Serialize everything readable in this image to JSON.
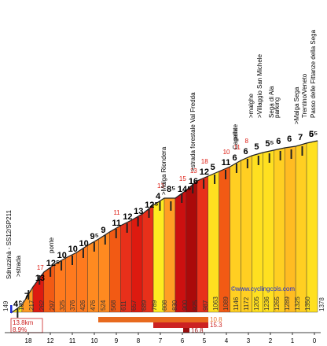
{
  "chart_data": {
    "type": "area",
    "title": "",
    "xlabel": "",
    "ylabel": "",
    "credit": "©www.cyclingcols.com",
    "x_unit": "km to go",
    "x_ticks": [
      18,
      12,
      11,
      10,
      9,
      8,
      7,
      6,
      5,
      4,
      3,
      2,
      1,
      0
    ],
    "xlim": [
      18.6,
      0
    ],
    "ylim": [
      1490,
      1380
    ],
    "start_altitude": "149",
    "end_altitude": "1378",
    "stats": {
      "distance": "13.8km",
      "gradient": "8.9%"
    },
    "max_gradient_bars": [
      {
        "label": "10.8",
        "color": "#e86a1e"
      },
      {
        "label": "15.3",
        "color": "#cc2222"
      },
      {
        "label": "16.8",
        "color": "#990f0f"
      }
    ],
    "segments": [
      {
        "km": 13.3,
        "grade": "4",
        "color": "#ffeb20"
      },
      {
        "km": 13.0,
        "grade": "7",
        "color": "#ff9a24"
      },
      {
        "km": 12.5,
        "grade": "13",
        "color": "#dd1a10"
      },
      {
        "km": 12.0,
        "grade": "12",
        "color": "#f25a14"
      },
      {
        "km": 11.5,
        "grade": "10",
        "color": "#ff7a1e"
      },
      {
        "km": 11.0,
        "grade": "10",
        "color": "#ff7a1e"
      },
      {
        "km": 10.5,
        "grade": "10",
        "color": "#ff7a1e"
      },
      {
        "km": 10.0,
        "grade": "9",
        "color": "#ff8a20"
      },
      {
        "km": 9.5,
        "grade": "9",
        "color": "#ff8a20"
      },
      {
        "km": 9.0,
        "grade": "11",
        "color": "#f25a14"
      },
      {
        "km": 8.5,
        "grade": "12",
        "color": "#e8301a"
      },
      {
        "km": 8.0,
        "grade": "13",
        "color": "#dd1a10"
      },
      {
        "km": 7.5,
        "grade": "12",
        "color": "#e8301a"
      },
      {
        "km": 7.0,
        "grade": "4",
        "color": "#ffeb20"
      },
      {
        "km": 6.5,
        "grade": "8",
        "color": "#ff9e24"
      },
      {
        "km": 6.0,
        "grade": "14",
        "color": "#cc1010"
      },
      {
        "km": 5.5,
        "grade": "16",
        "color": "#aa0a0a"
      },
      {
        "km": 5.0,
        "grade": "12",
        "color": "#e8301a"
      },
      {
        "km": 4.5,
        "grade": "5",
        "color": "#ffe020"
      },
      {
        "km": 4.0,
        "grade": "11",
        "color": "#f25a14"
      },
      {
        "km": 3.5,
        "grade": "6",
        "color": "#ffcf22"
      },
      {
        "km": 3.0,
        "grade": "6",
        "color": "#ffcf22"
      },
      {
        "km": 2.5,
        "grade": "5",
        "color": "#ffe020"
      },
      {
        "km": 2.0,
        "grade": "5",
        "color": "#ffe020"
      },
      {
        "km": 1.5,
        "grade": "6",
        "color": "#ffcf22"
      },
      {
        "km": 1.0,
        "grade": "7",
        "color": "#ffbc22"
      },
      {
        "km": 0.5,
        "grade": "6",
        "color": "#ffcf22"
      },
      {
        "km": 0.0,
        "grade": "5",
        "color": "#ffe020"
      }
    ],
    "altitudes": [
      "149",
      "162",
      "217",
      "262",
      "297",
      "325",
      "376",
      "426",
      "476",
      "524",
      "568",
      "611",
      "657",
      "689",
      "789",
      "808",
      "830",
      "900",
      "925",
      "987",
      "1063",
      "1089",
      "1146",
      "1172",
      "1205",
      "1236",
      "1265",
      "1289",
      "1325",
      "1350",
      "1378"
    ],
    "grade_labels": [
      {
        "text": "4⁵"
      },
      {
        "text": "7"
      },
      {
        "text": "13"
      },
      {
        "text": "12⁵"
      },
      {
        "text": "10"
      },
      {
        "text": "10"
      },
      {
        "text": "10"
      },
      {
        "text": "9⁵"
      },
      {
        "text": "9"
      },
      {
        "text": "11"
      },
      {
        "text": "12"
      },
      {
        "text": "13"
      },
      {
        "text": "12⁵"
      },
      {
        "text": "4"
      },
      {
        "text": "8⁵"
      },
      {
        "text": "14⁵"
      },
      {
        "text": "16"
      },
      {
        "text": "12"
      },
      {
        "text": "5"
      },
      {
        "text": "11"
      },
      {
        "text": "6"
      },
      {
        "text": "6"
      },
      {
        "text": "5"
      },
      {
        "text": "5⁵"
      },
      {
        "text": "6"
      },
      {
        "text": "6"
      },
      {
        "text": "7"
      },
      {
        "text": "6"
      },
      {
        "text": "5⁵"
      }
    ],
    "peak_labels": [
      {
        "text": "17",
        "color": "#dd1a10"
      },
      {
        "text": "11",
        "color": "#dd1a10"
      },
      {
        "text": "13",
        "color": "#dd1a10"
      },
      {
        "text": "15",
        "color": "#dd1a10"
      },
      {
        "text": "13",
        "color": "#dd1a10"
      },
      {
        "text": "18",
        "color": "#dd1a10"
      },
      {
        "text": "10",
        "color": "#dd1a10"
      },
      {
        "text": "11",
        "color": "#dd1a10"
      },
      {
        "text": "8",
        "color": "#dd1a10"
      }
    ],
    "annotations": [
      {
        "text": "Sdruzzinà - SS12/SP211"
      },
      {
        "text": ">strada"
      },
      {
        "text": "ponte"
      },
      {
        "text": ">Malga Riondera"
      },
      {
        "text": ">strada forestale Val Fredda"
      },
      {
        "text": "Capella"
      },
      {
        "text": "ponte"
      },
      {
        "text": ">malghe"
      },
      {
        "text": ">Villaggio San Michele"
      },
      {
        "text": "Sega di Ala"
      },
      {
        "text": "parking"
      },
      {
        "text": ">Malga Sega"
      },
      {
        "text": "Trentino/Veneto"
      },
      {
        "text": "Passo delle Fittanze della Sega"
      }
    ]
  }
}
